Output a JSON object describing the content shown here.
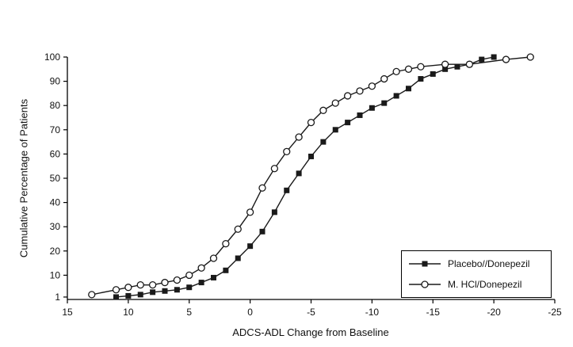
{
  "figure": {
    "background": "#ffffff",
    "line_color": "#1a1a1a"
  },
  "chart_data": {
    "type": "line",
    "title": "",
    "xlabel": "ADCS-ADL Change from Baseline",
    "ylabel": "Cumulative Percentage of Patients",
    "x_axis": {
      "min": 15,
      "max": -25,
      "reversed": true,
      "ticks": [
        15,
        10,
        5,
        0,
        -5,
        -10,
        -15,
        -20,
        -25
      ]
    },
    "y_axis": {
      "min": 0,
      "max": 100,
      "tick_labels": [
        "100",
        "90",
        "80",
        "70",
        "60",
        "50",
        "40",
        "30",
        "20",
        "10",
        "1"
      ],
      "tick_values": [
        100,
        90,
        80,
        70,
        60,
        50,
        40,
        30,
        20,
        10,
        1
      ]
    },
    "grid": false,
    "legend_position": "bottom-right-inside",
    "series": [
      {
        "name": "Placebo//Donepezil",
        "marker": "square",
        "color": "#1a1a1a",
        "points": [
          [
            11,
            1
          ],
          [
            10,
            1.5
          ],
          [
            9,
            2
          ],
          [
            8,
            3
          ],
          [
            7,
            3.5
          ],
          [
            6,
            4
          ],
          [
            5,
            5
          ],
          [
            4,
            7
          ],
          [
            3,
            9
          ],
          [
            2,
            12
          ],
          [
            1,
            17
          ],
          [
            0,
            22
          ],
          [
            -1,
            28
          ],
          [
            -2,
            36
          ],
          [
            -3,
            45
          ],
          [
            -4,
            52
          ],
          [
            -5,
            59
          ],
          [
            -6,
            65
          ],
          [
            -7,
            70
          ],
          [
            -8,
            73
          ],
          [
            -9,
            76
          ],
          [
            -10,
            79
          ],
          [
            -11,
            81
          ],
          [
            -12,
            84
          ],
          [
            -13,
            87
          ],
          [
            -14,
            91
          ],
          [
            -15,
            93
          ],
          [
            -16,
            95
          ],
          [
            -17,
            96
          ],
          [
            -18,
            97
          ],
          [
            -19,
            99
          ],
          [
            -20,
            100
          ]
        ]
      },
      {
        "name": "M. HCl/Donepezil",
        "marker": "circle",
        "color": "#1a1a1a",
        "points": [
          [
            13,
            2
          ],
          [
            11,
            4
          ],
          [
            10,
            5
          ],
          [
            9,
            6
          ],
          [
            8,
            6
          ],
          [
            7,
            7
          ],
          [
            6,
            8
          ],
          [
            5,
            10
          ],
          [
            4,
            13
          ],
          [
            3,
            17
          ],
          [
            2,
            23
          ],
          [
            1,
            29
          ],
          [
            0,
            36
          ],
          [
            -1,
            46
          ],
          [
            -2,
            54
          ],
          [
            -3,
            61
          ],
          [
            -4,
            67
          ],
          [
            -5,
            73
          ],
          [
            -6,
            78
          ],
          [
            -7,
            81
          ],
          [
            -8,
            84
          ],
          [
            -9,
            86
          ],
          [
            -10,
            88
          ],
          [
            -11,
            91
          ],
          [
            -12,
            94
          ],
          [
            -13,
            95
          ],
          [
            -14,
            96
          ],
          [
            -16,
            97
          ],
          [
            -18,
            97
          ],
          [
            -21,
            99
          ],
          [
            -23,
            100
          ]
        ]
      }
    ]
  }
}
